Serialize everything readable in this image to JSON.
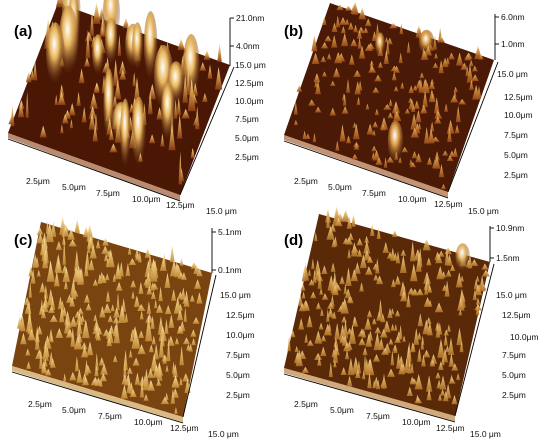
{
  "figure": {
    "panels": [
      {
        "label": "(a)",
        "z_ticks": [
          "21.0nm",
          "4.0nm"
        ],
        "y_ticks": [
          "15.0 μm",
          "12.5μm",
          "10.0μm",
          "7.5μm",
          "5.0μm",
          "2.5μm"
        ],
        "x_ticks": [
          "2.5μm",
          "5.0μm",
          "7.5μm",
          "10.0μm",
          "12.5μm",
          "15.0 μm"
        ],
        "colors": {
          "base": "#4a1704",
          "mid": "#8a3d10",
          "peak": "#e9b75e",
          "highlight": "#fbf1d6"
        }
      },
      {
        "label": "(b)",
        "z_ticks": [
          "6.0nm",
          "1.0nm"
        ],
        "y_ticks": [
          "15.0 μm",
          "12.5μm",
          "10.0μm",
          "7.5μm",
          "5.0μm",
          "2.5μm"
        ],
        "x_ticks": [
          "2.5μm",
          "5.0μm",
          "7.5μm",
          "10.0μm",
          "12.5μm",
          "15.0 μm"
        ],
        "colors": {
          "base": "#4a1a06",
          "mid": "#9a4b17",
          "peak": "#d99a45",
          "highlight": "#f6dfae"
        }
      },
      {
        "label": "(c)",
        "z_ticks": [
          "5.1nm",
          "0.1nm"
        ],
        "y_ticks": [
          "15.0 μm",
          "12.5μm",
          "10.0μm",
          "7.5μm",
          "5.0μm",
          "2.5μm"
        ],
        "x_ticks": [
          "2.5μm",
          "5.0μm",
          "7.5μm",
          "10.0μm",
          "12.5μm",
          "15.0 μm"
        ],
        "colors": {
          "base": "#7a4410",
          "mid": "#c28a36",
          "peak": "#eac879",
          "highlight": "#fbeed0"
        }
      },
      {
        "label": "(d)",
        "z_ticks": [
          "10.9nm",
          "1.5nm"
        ],
        "y_ticks": [
          "15.0 μm",
          "12.5μm",
          "10.0μm",
          "7.5μm",
          "5.0μm",
          "2.5μm"
        ],
        "x_ticks": [
          "2.5μm",
          "5.0μm",
          "7.5μm",
          "10.0μm",
          "12.5μm",
          "15.0 μm"
        ],
        "colors": {
          "base": "#5a2a08",
          "mid": "#b07025",
          "peak": "#e4b868",
          "highlight": "#f8e8c2"
        }
      }
    ]
  }
}
